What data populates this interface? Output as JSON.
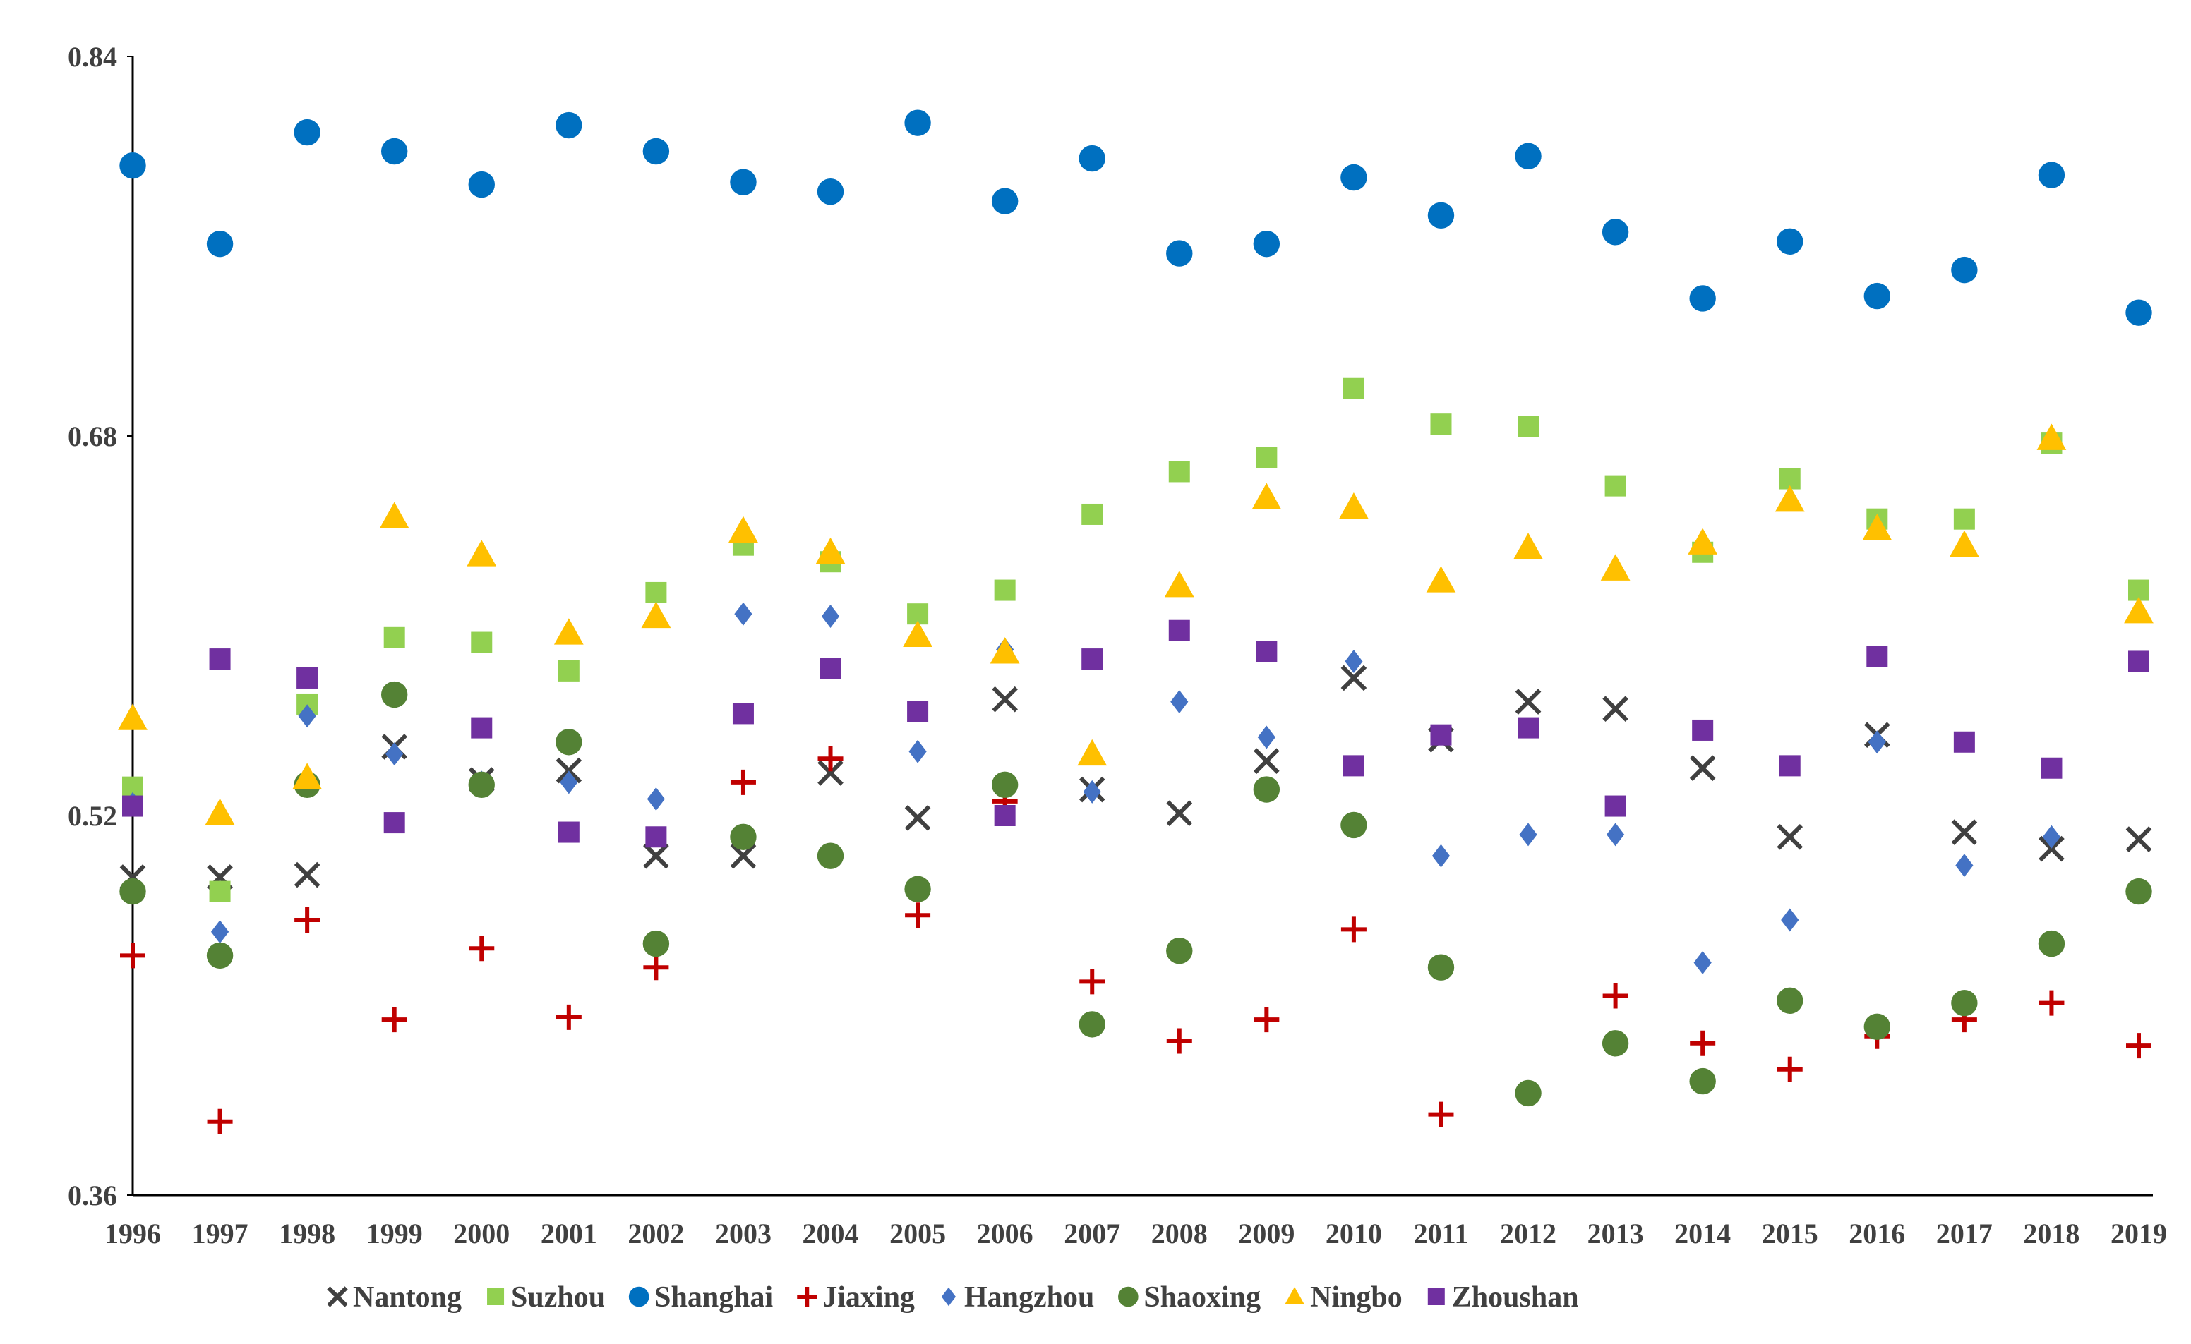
{
  "chart_data": {
    "type": "scatter",
    "title": "",
    "xlabel": "",
    "ylabel": "",
    "ylim": [
      0.36,
      0.84
    ],
    "yticks": [
      0.36,
      0.52,
      0.68,
      0.84
    ],
    "ytick_labels": [
      "0.36",
      "0.52",
      "0.68",
      "0.84"
    ],
    "legend_position": "bottom",
    "grid": false,
    "categories": [
      "1996",
      "1997",
      "1998",
      "1999",
      "2000",
      "2001",
      "2002",
      "2003",
      "2004",
      "2005",
      "2006",
      "2007",
      "2008",
      "2009",
      "2010",
      "2011",
      "2012",
      "2013",
      "2014",
      "2015",
      "2016",
      "2017",
      "2018",
      "2019"
    ],
    "series": [
      {
        "name": "Nantong",
        "marker": "x",
        "color": "#404040",
        "values": [
          0.494,
          0.494,
          0.495,
          0.549,
          0.535,
          0.539,
          0.503,
          0.503,
          0.538,
          0.519,
          0.569,
          0.531,
          0.521,
          0.543,
          0.578,
          0.552,
          0.568,
          0.565,
          0.54,
          0.511,
          0.554,
          0.513,
          0.506,
          0.51
        ]
      },
      {
        "name": "Suzhou",
        "marker": "square",
        "color": "#92D050",
        "values": [
          0.532,
          0.488,
          0.567,
          0.595,
          0.593,
          0.581,
          0.614,
          0.634,
          0.627,
          0.605,
          0.615,
          0.647,
          0.665,
          0.671,
          0.7,
          0.685,
          0.684,
          0.659,
          0.631,
          0.662,
          0.645,
          0.645,
          0.677,
          0.615
        ]
      },
      {
        "name": "Shanghai",
        "marker": "circle",
        "color": "#0070C0",
        "values": [
          0.794,
          0.761,
          0.808,
          0.8,
          0.786,
          0.811,
          0.8,
          0.787,
          0.783,
          0.812,
          0.779,
          0.797,
          0.757,
          0.761,
          0.789,
          0.773,
          0.798,
          0.766,
          0.738,
          0.762,
          0.739,
          0.75,
          0.79,
          0.732
        ]
      },
      {
        "name": "Jiaxing",
        "marker": "plus",
        "color": "#C00000",
        "values": [
          0.461,
          0.391,
          0.476,
          0.434,
          0.464,
          0.435,
          0.456,
          0.534,
          0.544,
          0.478,
          0.526,
          0.45,
          0.425,
          0.434,
          0.472,
          0.394,
          0.403,
          0.444,
          0.424,
          0.413,
          0.427,
          0.434,
          0.441,
          0.423
        ]
      },
      {
        "name": "Hangzhou",
        "marker": "diamond",
        "color": "#4472C4",
        "values": [
          0.525,
          0.471,
          0.562,
          0.546,
          0.534,
          0.534,
          0.527,
          0.605,
          0.604,
          0.547,
          0.59,
          0.53,
          0.568,
          0.553,
          0.585,
          0.503,
          0.512,
          0.512,
          0.458,
          0.476,
          0.551,
          0.499,
          0.511,
          0.488
        ]
      },
      {
        "name": "Shaoxing",
        "marker": "circle",
        "color": "#548235",
        "values": [
          0.488,
          0.461,
          0.533,
          0.571,
          0.533,
          0.551,
          0.466,
          0.511,
          0.503,
          0.489,
          0.533,
          0.432,
          0.463,
          0.531,
          0.516,
          0.456,
          0.403,
          0.424,
          0.408,
          0.442,
          0.431,
          0.441,
          0.466,
          0.488
        ]
      },
      {
        "name": "Ningbo",
        "marker": "triangle",
        "color": "#FFC000",
        "values": [
          0.561,
          0.521,
          0.536,
          0.646,
          0.63,
          0.597,
          0.604,
          0.64,
          0.631,
          0.596,
          0.589,
          0.546,
          0.617,
          0.654,
          0.65,
          0.619,
          0.633,
          0.624,
          0.635,
          0.653,
          0.641,
          0.634,
          0.679,
          0.606
        ]
      },
      {
        "name": "Zhoushan",
        "marker": "square",
        "color": "#7030A0",
        "values": [
          0.524,
          0.586,
          0.578,
          0.517,
          0.557,
          0.513,
          0.511,
          0.563,
          0.582,
          0.564,
          0.52,
          0.586,
          0.598,
          0.589,
          0.541,
          0.554,
          0.557,
          0.524,
          0.556,
          0.541,
          0.587,
          0.551,
          0.54,
          0.585
        ]
      }
    ]
  }
}
